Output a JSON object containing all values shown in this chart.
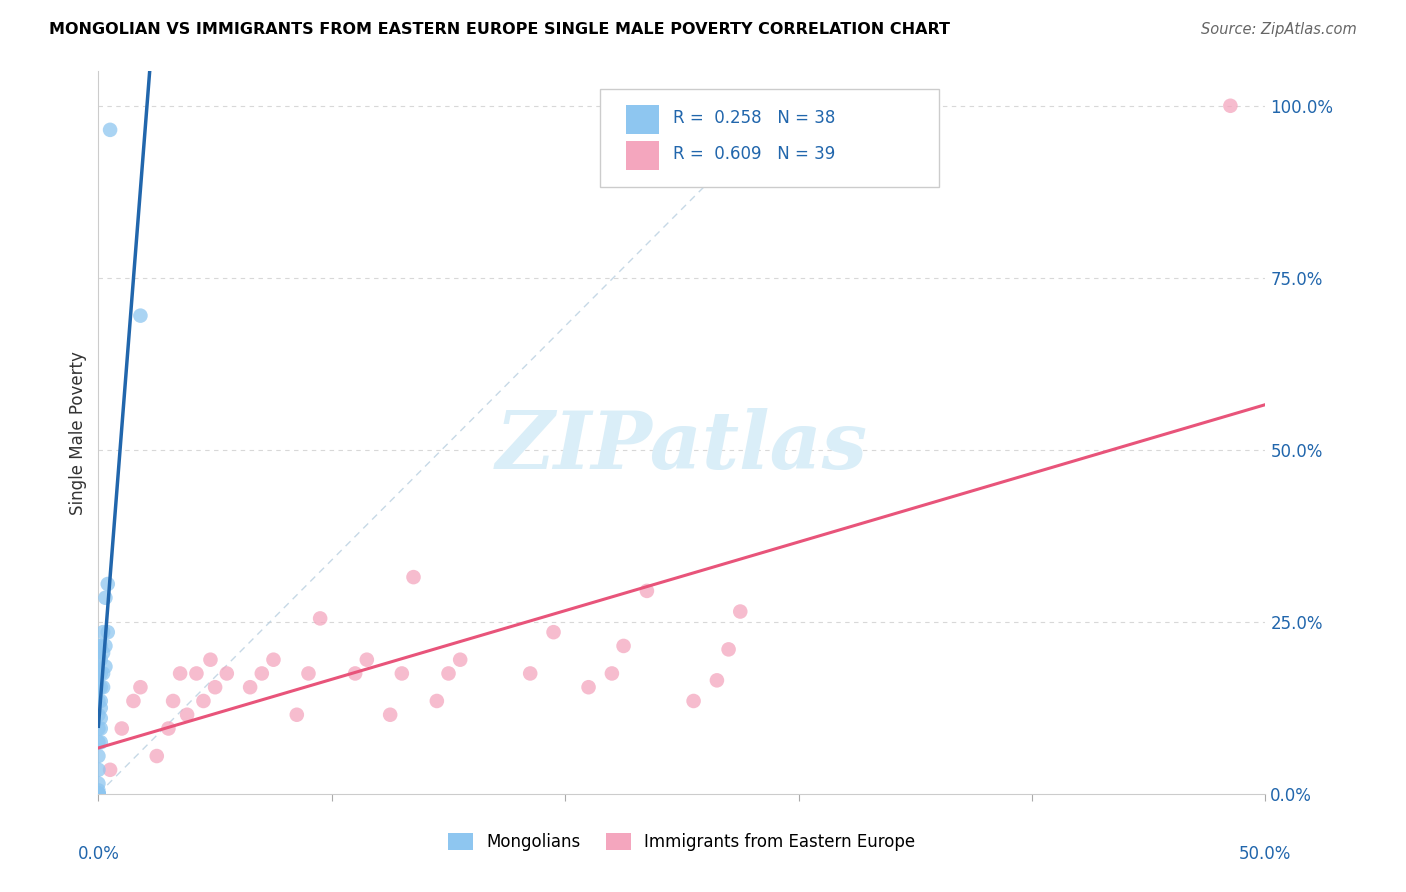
{
  "title": "MONGOLIAN VS IMMIGRANTS FROM EASTERN EUROPE SINGLE MALE POVERTY CORRELATION CHART",
  "source": "Source: ZipAtlas.com",
  "ylabel": "Single Male Poverty",
  "right_yticks": [
    "100.0%",
    "75.0%",
    "50.0%",
    "25.0%",
    "0.0%"
  ],
  "right_ytick_vals": [
    1.0,
    0.75,
    0.5,
    0.25,
    0.0
  ],
  "xlim": [
    0.0,
    0.5
  ],
  "ylim": [
    0.0,
    1.05
  ],
  "legend_R_blue": "0.258",
  "legend_N_blue": "38",
  "legend_R_pink": "0.609",
  "legend_N_pink": "39",
  "legend_label_blue": "Mongolians",
  "legend_label_pink": "Immigrants from Eastern Europe",
  "color_blue_scatter": "#8ec6f0",
  "color_blue_line": "#2166ac",
  "color_pink_scatter": "#f4a6be",
  "color_pink_line": "#e8547a",
  "color_blue_text": "#2166ac",
  "watermark_color": "#daeef8",
  "grid_color": "#d8d8d8",
  "blue_scatter_x": [
    0.018,
    0.005,
    0.004,
    0.004,
    0.003,
    0.003,
    0.003,
    0.002,
    0.002,
    0.002,
    0.002,
    0.001,
    0.001,
    0.001,
    0.001,
    0.001,
    0.001,
    0.001,
    0.001,
    0.001,
    0.0,
    0.0,
    0.0,
    0.0,
    0.0,
    0.0,
    0.0,
    0.0,
    0.0,
    0.0,
    0.0,
    0.0,
    0.0,
    0.0,
    0.0,
    0.0,
    0.0,
    0.0
  ],
  "blue_scatter_y": [
    0.695,
    0.965,
    0.305,
    0.235,
    0.285,
    0.215,
    0.185,
    0.235,
    0.205,
    0.175,
    0.155,
    0.215,
    0.195,
    0.175,
    0.155,
    0.135,
    0.125,
    0.11,
    0.095,
    0.075,
    0.215,
    0.195,
    0.175,
    0.155,
    0.135,
    0.115,
    0.095,
    0.075,
    0.055,
    0.035,
    0.015,
    0.005,
    0.0,
    0.0,
    0.0,
    0.0,
    0.0,
    0.0
  ],
  "pink_scatter_x": [
    0.485,
    0.275,
    0.27,
    0.265,
    0.255,
    0.235,
    0.225,
    0.22,
    0.21,
    0.195,
    0.185,
    0.155,
    0.15,
    0.145,
    0.135,
    0.13,
    0.125,
    0.115,
    0.11,
    0.095,
    0.09,
    0.085,
    0.075,
    0.07,
    0.065,
    0.055,
    0.05,
    0.045,
    0.048,
    0.042,
    0.038,
    0.035,
    0.032,
    0.03,
    0.025,
    0.018,
    0.015,
    0.01,
    0.005
  ],
  "pink_scatter_y": [
    1.0,
    0.265,
    0.21,
    0.165,
    0.135,
    0.295,
    0.215,
    0.175,
    0.155,
    0.235,
    0.175,
    0.195,
    0.175,
    0.135,
    0.315,
    0.175,
    0.115,
    0.195,
    0.175,
    0.255,
    0.175,
    0.115,
    0.195,
    0.175,
    0.155,
    0.175,
    0.155,
    0.135,
    0.195,
    0.175,
    0.115,
    0.175,
    0.135,
    0.095,
    0.055,
    0.155,
    0.135,
    0.095,
    0.035
  ]
}
